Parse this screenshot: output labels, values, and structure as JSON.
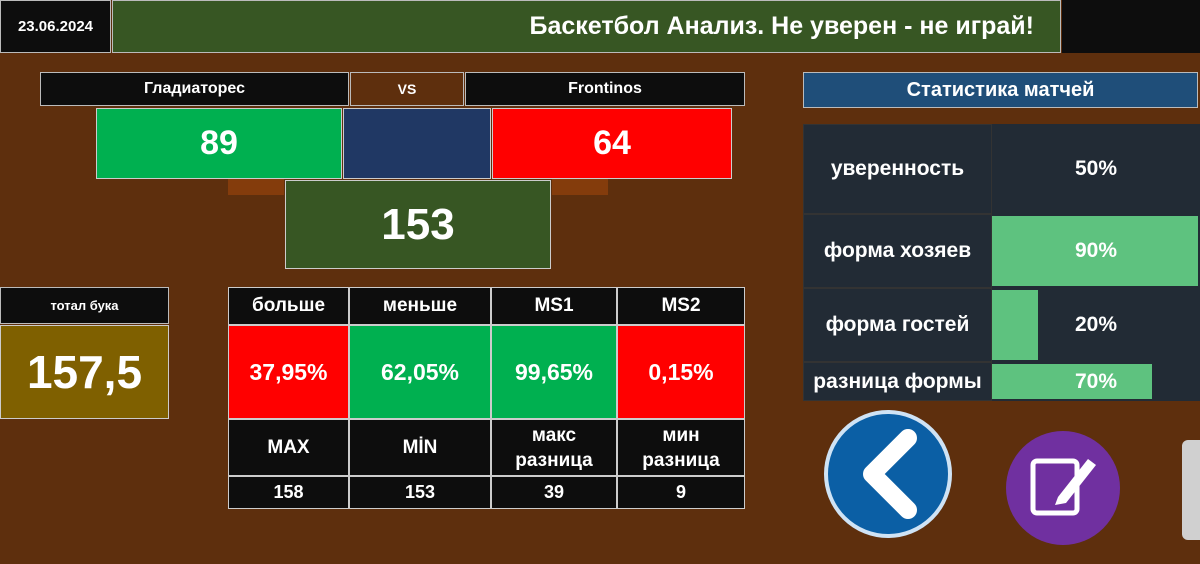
{
  "header": {
    "date": "23.06.2024",
    "title": "Баскетбол Анализ. Не уверен - не играй!"
  },
  "match": {
    "home": "Гладиаторес",
    "vs": "VS",
    "away": "Frontinos",
    "home_score": 89,
    "away_score": 64,
    "total": 153
  },
  "bookmaker": {
    "label": "тотал бука",
    "value": "157,5"
  },
  "odds": {
    "headers": [
      "больше",
      "меньше",
      "MS1",
      "MS2"
    ],
    "values": [
      "37,95%",
      "62,05%",
      "99,65%",
      "0,15%"
    ],
    "labels": [
      "MAX",
      "MİN",
      "макс разница",
      "мин разница"
    ],
    "numbers": [
      158,
      153,
      39,
      9
    ]
  },
  "stats": {
    "title": "Статистика матчей",
    "rows": [
      {
        "label": "уверенность",
        "value": "50%"
      },
      {
        "label": "форма хозяев",
        "value": "90%"
      },
      {
        "label": "форма гостей",
        "value": "20%"
      },
      {
        "label": "разница формы",
        "value": "70%"
      }
    ]
  }
}
